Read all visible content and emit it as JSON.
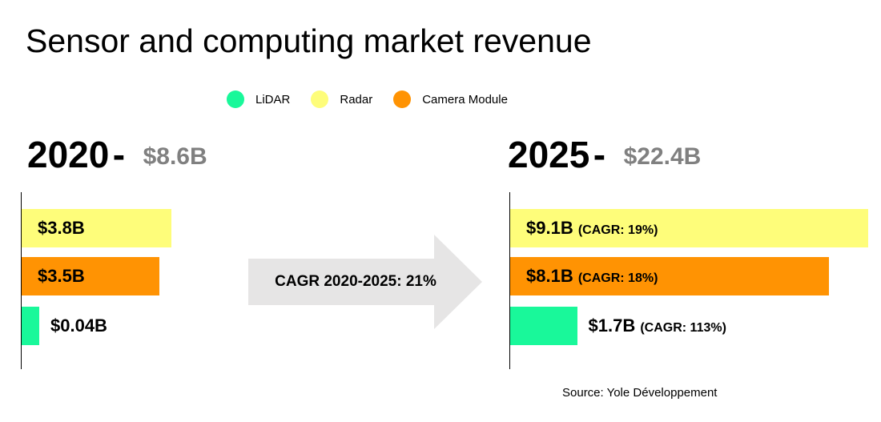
{
  "chart_data": {
    "type": "bar",
    "title": "Sensor and computing market revenue",
    "orientation": "horizontal",
    "legend": [
      {
        "name": "LiDAR",
        "color": "#19f89a"
      },
      {
        "name": "Radar",
        "color": "#fefd7a"
      },
      {
        "name": "Camera Module",
        "color": "#ff9303"
      }
    ],
    "panels": [
      {
        "year": "2020",
        "dash": "-",
        "total": "$8.6B",
        "bars": [
          {
            "series": "Radar",
            "value": 3.8,
            "label": "$3.8B",
            "cagr": ""
          },
          {
            "series": "Camera Module",
            "value": 3.5,
            "label": "$3.5B",
            "cagr": ""
          },
          {
            "series": "LiDAR",
            "value": 0.04,
            "label": "$0.04B",
            "cagr": ""
          }
        ]
      },
      {
        "year": "2025",
        "dash": "-",
        "total": "$22.4B",
        "bars": [
          {
            "series": "Radar",
            "value": 9.1,
            "label": "$9.1B",
            "cagr": "(CAGR: 19%)"
          },
          {
            "series": "Camera Module",
            "value": 8.1,
            "label": "$8.1B",
            "cagr": "(CAGR: 18%)"
          },
          {
            "series": "LiDAR",
            "value": 1.7,
            "label": "$1.7B",
            "cagr": "(CAGR: 113%)"
          }
        ]
      }
    ],
    "arrow_annotation": "CAGR 2020-2025:  21%",
    "source": "Source: Yole Développement"
  }
}
